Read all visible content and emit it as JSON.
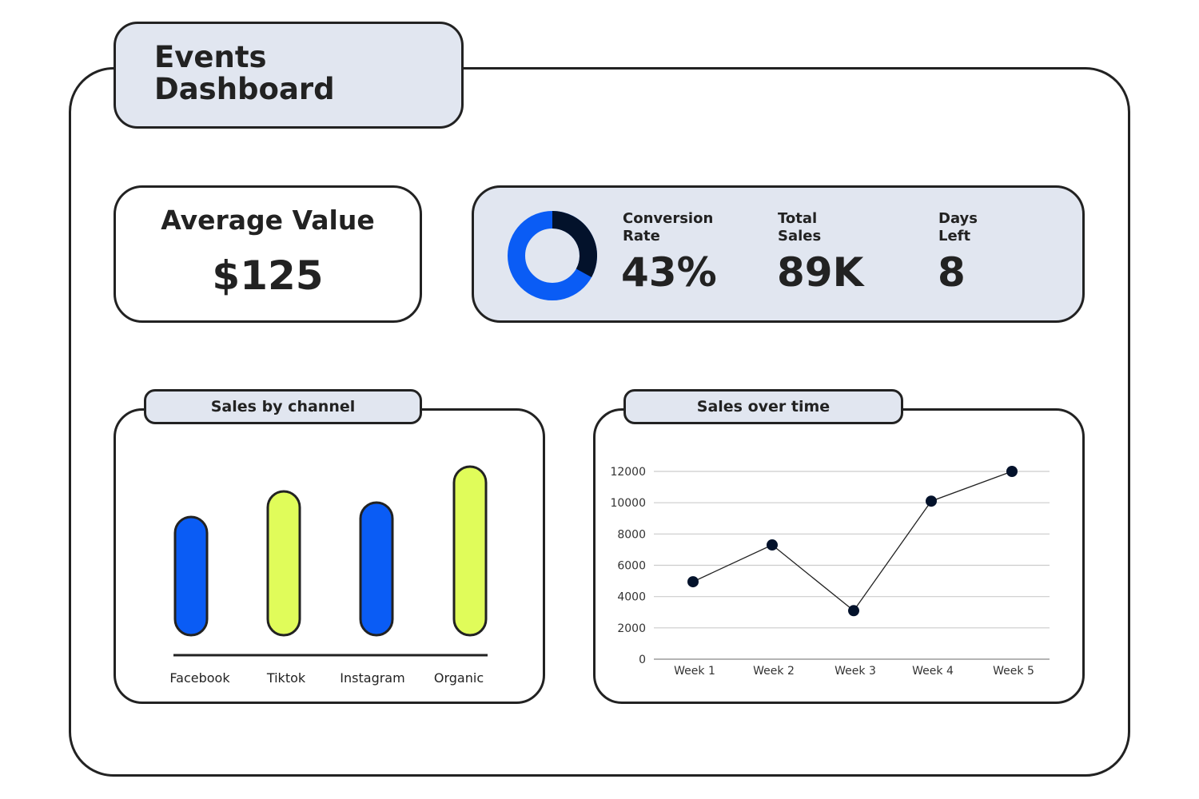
{
  "header": {
    "title_line1": "Events",
    "title_line2": "Dashboard"
  },
  "average": {
    "label": "Average Value",
    "value": "$125"
  },
  "kpis": [
    {
      "label_line1": "Conversion",
      "label_line2": "Rate",
      "value": "43%"
    },
    {
      "label_line1": "Total",
      "label_line2": "Sales",
      "value": "89K"
    },
    {
      "label_line1": "Days",
      "label_line2": "Left",
      "value": "8"
    }
  ],
  "donut": {
    "dark_fraction": 0.33,
    "colors": {
      "primary": "#0a5cf5",
      "secondary": "#03122b"
    }
  },
  "colors": {
    "blue": "#0a5cf5",
    "lime": "#e0fc5a",
    "panel": "#e1e6f0",
    "ink": "#222222"
  },
  "chart_data": [
    {
      "type": "bar",
      "title": "Sales by channel",
      "categories": [
        "Facebook",
        "Tiktok",
        "Instagram",
        "Organic"
      ],
      "values": [
        148,
        180,
        166,
        211
      ],
      "colors": [
        "#0a5cf5",
        "#e0fc5a",
        "#0a5cf5",
        "#e0fc5a"
      ],
      "grid": false
    },
    {
      "type": "line",
      "title": "Sales over time",
      "categories": [
        "Week 1",
        "Week 2",
        "Week 3",
        "Week 4",
        "Week 5"
      ],
      "values": [
        4950,
        7300,
        3100,
        10100,
        12000
      ],
      "ylim": [
        0,
        12000
      ],
      "yticks": [
        "0",
        "2000",
        "4000",
        "6000",
        "8000",
        "10000",
        "12000"
      ],
      "grid": true
    }
  ]
}
